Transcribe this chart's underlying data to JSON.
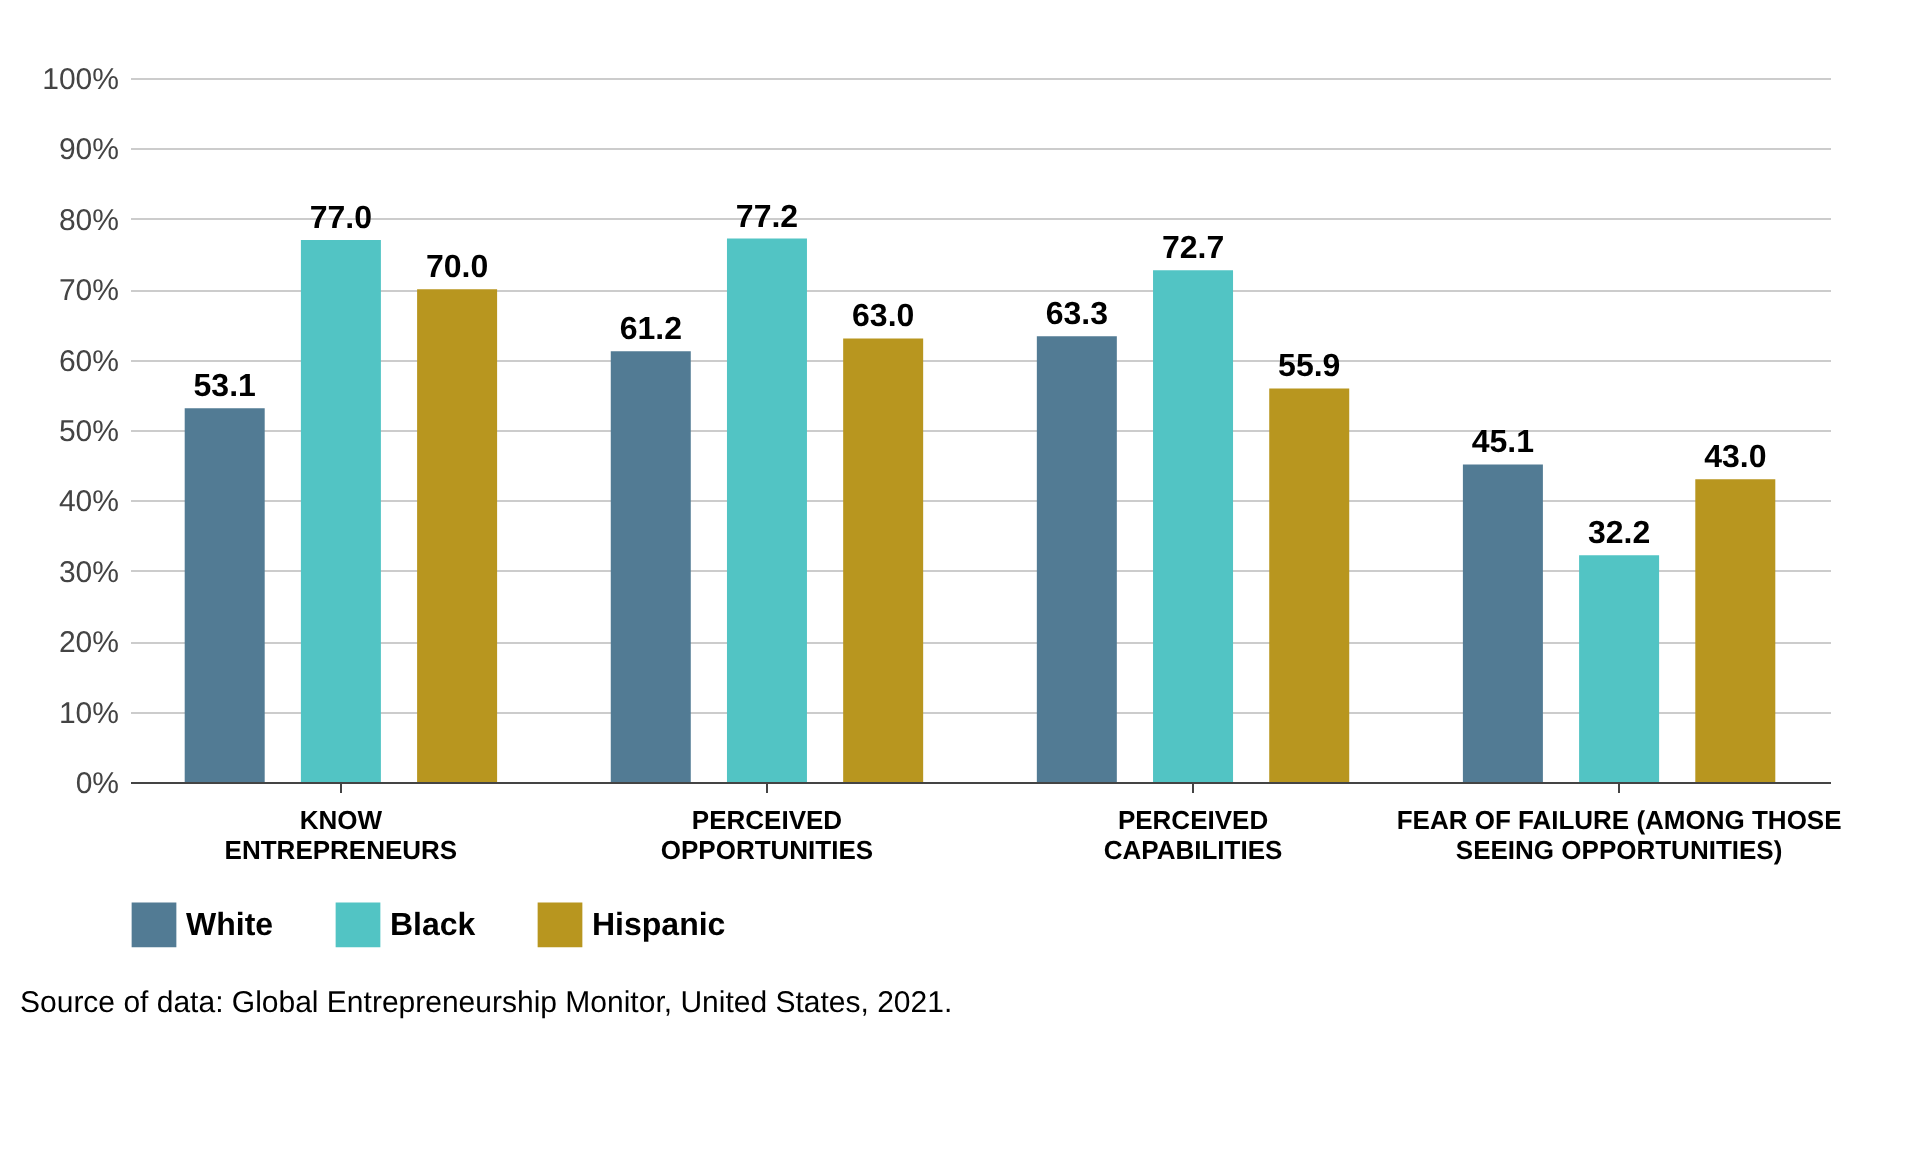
{
  "chart_data": {
    "type": "bar",
    "categories": [
      "KNOW\nENTREPRENEURS",
      "PERCEIVED\nOPPORTUNITIES",
      "PERCEIVED\nCAPABILITIES",
      "FEAR OF FAILURE (AMONG THOSE\nSEEING OPPORTUNITIES)"
    ],
    "series": [
      {
        "name": "White",
        "color": "#527b94",
        "values": [
          53.1,
          61.2,
          63.3,
          45.1
        ],
        "value_labels": [
          "53.1",
          "61.2",
          "63.3",
          "45.1"
        ]
      },
      {
        "name": "Black",
        "color": "#52c4c4",
        "values": [
          77.0,
          77.2,
          72.7,
          32.2
        ],
        "value_labels": [
          "77.0",
          "77.2",
          "72.7",
          "32.2"
        ]
      },
      {
        "name": "Hispanic",
        "color": "#b8961f",
        "values": [
          70.0,
          63.0,
          55.9,
          43.0
        ],
        "value_labels": [
          "70.0",
          "63.0",
          "55.9",
          "43.0"
        ]
      }
    ],
    "ylim": [
      0,
      100
    ],
    "yticks": [
      {
        "value": 0,
        "label": "0%"
      },
      {
        "value": 10,
        "label": "10%"
      },
      {
        "value": 20,
        "label": "20%"
      },
      {
        "value": 30,
        "label": "30%"
      },
      {
        "value": 40,
        "label": "40%"
      },
      {
        "value": 50,
        "label": "50%"
      },
      {
        "value": 60,
        "label": "60%"
      },
      {
        "value": 70,
        "label": "70%"
      },
      {
        "value": 80,
        "label": "80%"
      },
      {
        "value": 90,
        "label": "90%"
      },
      {
        "value": 100,
        "label": "100%"
      }
    ],
    "grid": "y",
    "legend": "bottom",
    "data_labels": true,
    "annotations": [
      "Source of data: Global Entrepreneurship Monitor, United States, 2021."
    ]
  }
}
